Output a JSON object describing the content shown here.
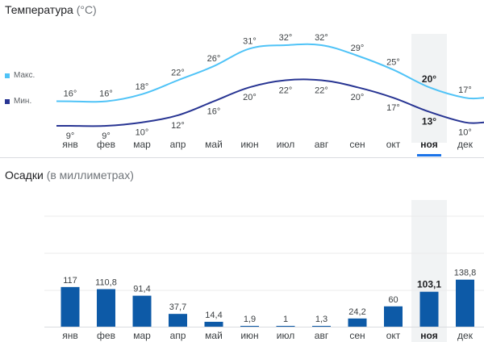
{
  "temperature": {
    "title": "Температура",
    "unit": "(°C)",
    "legend": [
      {
        "label": "Макс.",
        "color": "#4fc3f7"
      },
      {
        "label": "Мин.",
        "color": "#283593"
      }
    ],
    "max_labels": [
      "16°",
      "16°",
      "18°",
      "22°",
      "26°",
      "31°",
      "32°",
      "32°",
      "29°",
      "25°",
      "20°",
      "17°"
    ],
    "min_labels": [
      "9°",
      "9°",
      "10°",
      "12°",
      "16°",
      "20°",
      "22°",
      "22°",
      "20°",
      "17°",
      "13°",
      "10°"
    ],
    "selected_index": 10
  },
  "precipitation": {
    "title": "Осадки",
    "unit": "(в миллиметрах)",
    "labels": [
      "117",
      "110,8",
      "91,4",
      "37,7",
      "14,4",
      "1,9",
      "1",
      "1,3",
      "24,2",
      "60",
      "103,1",
      "138,8"
    ],
    "bar_color": "#0d5aa7"
  },
  "months": [
    "янв",
    "фев",
    "мар",
    "апр",
    "май",
    "июн",
    "июл",
    "авг",
    "сен",
    "окт",
    "ноя",
    "дек"
  ],
  "chart_data": [
    {
      "type": "line",
      "title": "Температура",
      "ylabel": "(°C)",
      "categories": [
        "янв",
        "фев",
        "мар",
        "апр",
        "май",
        "июн",
        "июл",
        "авг",
        "сен",
        "окт",
        "ноя",
        "дек"
      ],
      "series": [
        {
          "name": "Макс.",
          "values": [
            16,
            16,
            18,
            22,
            26,
            31,
            32,
            32,
            29,
            25,
            20,
            17
          ]
        },
        {
          "name": "Мин.",
          "values": [
            9,
            9,
            10,
            12,
            16,
            20,
            22,
            22,
            20,
            17,
            13,
            10
          ]
        }
      ],
      "highlighted_category": "ноя"
    },
    {
      "type": "bar",
      "title": "Осадки",
      "ylabel": "(в миллиметрах)",
      "categories": [
        "янв",
        "фев",
        "мар",
        "апр",
        "май",
        "июн",
        "июл",
        "авг",
        "сен",
        "окт",
        "ноя",
        "дек"
      ],
      "values": [
        117,
        110.8,
        91.4,
        37.7,
        14.4,
        1.9,
        1,
        1.3,
        24.2,
        60,
        103.1,
        138.8
      ],
      "highlighted_category": "ноя",
      "grid": true
    }
  ]
}
